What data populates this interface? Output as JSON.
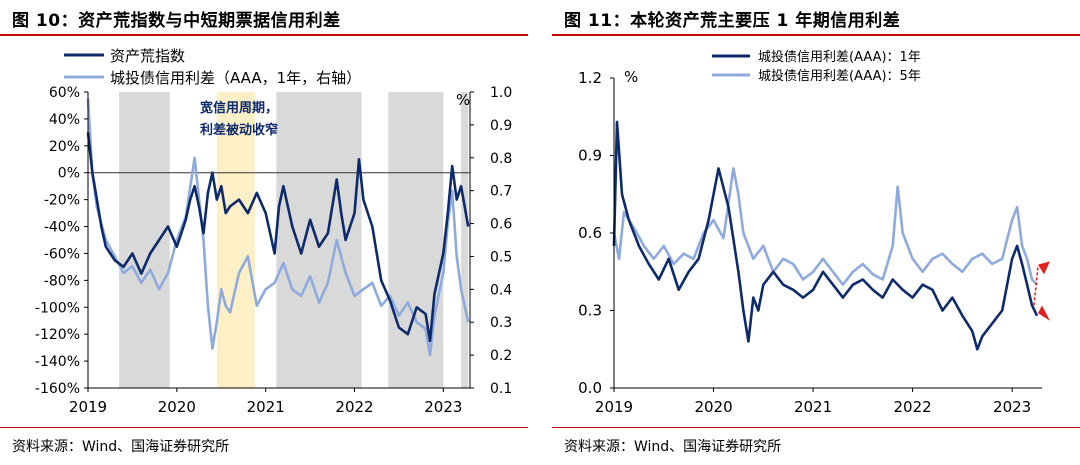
{
  "colors": {
    "dark": "#0d2a6b",
    "light": "#8faadc",
    "shade": "#d9d9d9",
    "highlight": "#fdf0c6",
    "arrow": "#e0221f"
  },
  "left": {
    "title": "图 10：资产荒指数与中短期票据信用利差",
    "source": "资料来源：Wind、国海证券研究所",
    "pct_unit": "%",
    "annotation": [
      "宽信用周期，",
      "利差被动收窄"
    ],
    "legend": [
      "资产荒指数",
      "城投债信用利差（AAA，1年，右轴）"
    ]
  },
  "right": {
    "title": "图 11：本轮资产荒主要压 1 年期信用利差",
    "source": "资料来源：Wind、国海证券研究所",
    "pct_unit": "%",
    "legend": [
      "城投债信用利差(AAA)：1年",
      "城投债信用利差(AAA)：5年"
    ]
  },
  "chart_data": [
    {
      "type": "line",
      "title": "图 10：资产荒指数与中短期票据信用利差",
      "x_ticks": [
        "2019",
        "2020",
        "2021",
        "2022",
        "2023"
      ],
      "y_left_ticks": [
        "60%",
        "40%",
        "20%",
        "0%",
        "-20%",
        "-40%",
        "-60%",
        "-80%",
        "-100%",
        "-120%",
        "-140%",
        "-160%"
      ],
      "y_right_ticks": [
        "1.0",
        "0.9",
        "0.8",
        "0.7",
        "0.6",
        "0.5",
        "0.4",
        "0.3",
        "0.2",
        "0.1"
      ],
      "ylim_left": [
        -160,
        60
      ],
      "ylim_right": [
        0.1,
        1.0
      ],
      "xlim": [
        2019.0,
        2023.3
      ],
      "shaded_periods": [
        [
          2019.35,
          2019.92
        ],
        [
          2021.12,
          2022.08
        ],
        [
          2022.38,
          2023.0
        ],
        [
          2023.2,
          2023.28
        ]
      ],
      "highlight_period": [
        2020.45,
        2020.88
      ],
      "series": [
        {
          "name": "资产荒指数",
          "axis": "left",
          "color": "#0d2a6b",
          "x": [
            2019.0,
            2019.05,
            2019.1,
            2019.15,
            2019.2,
            2019.3,
            2019.4,
            2019.5,
            2019.6,
            2019.7,
            2019.8,
            2019.9,
            2020.0,
            2020.05,
            2020.1,
            2020.15,
            2020.2,
            2020.25,
            2020.3,
            2020.35,
            2020.4,
            2020.45,
            2020.5,
            2020.55,
            2020.6,
            2020.7,
            2020.8,
            2020.9,
            2021.0,
            2021.1,
            2021.15,
            2021.2,
            2021.3,
            2021.4,
            2021.5,
            2021.6,
            2021.7,
            2021.8,
            2021.85,
            2021.9,
            2022.0,
            2022.05,
            2022.1,
            2022.2,
            2022.3,
            2022.4,
            2022.5,
            2022.6,
            2022.7,
            2022.8,
            2022.85,
            2022.9,
            2023.0,
            2023.05,
            2023.1,
            2023.15,
            2023.2,
            2023.28
          ],
          "values": [
            30,
            0,
            -20,
            -40,
            -55,
            -65,
            -70,
            -60,
            -75,
            -60,
            -50,
            -40,
            -55,
            -45,
            -35,
            -20,
            -10,
            -25,
            -45,
            -15,
            0,
            -20,
            -10,
            -30,
            -25,
            -20,
            -30,
            -15,
            -30,
            -60,
            -25,
            -10,
            -40,
            -60,
            -35,
            -55,
            -45,
            -5,
            -30,
            -50,
            -30,
            10,
            -20,
            -40,
            -80,
            -95,
            -115,
            -120,
            -100,
            -105,
            -125,
            -90,
            -60,
            -30,
            5,
            -20,
            -10,
            -40
          ]
        },
        {
          "name": "城投债信用利差（AAA，1年，右轴）",
          "axis": "right",
          "color": "#8faadc",
          "x": [
            2019.0,
            2019.05,
            2019.1,
            2019.15,
            2019.2,
            2019.3,
            2019.4,
            2019.5,
            2019.6,
            2019.7,
            2019.8,
            2019.9,
            2020.0,
            2020.1,
            2020.2,
            2020.3,
            2020.35,
            2020.4,
            2020.45,
            2020.5,
            2020.55,
            2020.6,
            2020.7,
            2020.8,
            2020.9,
            2021.0,
            2021.1,
            2021.2,
            2021.3,
            2021.4,
            2021.5,
            2021.6,
            2021.7,
            2021.8,
            2021.9,
            2022.0,
            2022.1,
            2022.2,
            2022.3,
            2022.4,
            2022.5,
            2022.6,
            2022.7,
            2022.8,
            2022.85,
            2022.9,
            2023.0,
            2023.05,
            2023.1,
            2023.15,
            2023.2,
            2023.28
          ],
          "values": [
            0.98,
            0.75,
            0.65,
            0.6,
            0.55,
            0.5,
            0.45,
            0.47,
            0.42,
            0.46,
            0.4,
            0.45,
            0.55,
            0.62,
            0.8,
            0.55,
            0.35,
            0.22,
            0.3,
            0.4,
            0.35,
            0.33,
            0.45,
            0.5,
            0.35,
            0.4,
            0.42,
            0.48,
            0.4,
            0.38,
            0.44,
            0.36,
            0.42,
            0.55,
            0.45,
            0.38,
            0.4,
            0.42,
            0.35,
            0.38,
            0.32,
            0.36,
            0.3,
            0.28,
            0.2,
            0.32,
            0.45,
            0.6,
            0.7,
            0.5,
            0.4,
            0.3
          ]
        }
      ]
    },
    {
      "type": "line",
      "title": "图 11：本轮资产荒主要压 1 年期信用利差",
      "x_ticks": [
        "2019",
        "2020",
        "2021",
        "2022",
        "2023"
      ],
      "y_ticks": [
        "1.2",
        "0.9",
        "0.6",
        "0.3",
        "0.0"
      ],
      "ylim": [
        0.0,
        1.2
      ],
      "xlim": [
        2019.0,
        2023.3
      ],
      "series": [
        {
          "name": "城投债信用利差(AAA)：1年",
          "color": "#0d2a6b",
          "x": [
            2019.0,
            2019.03,
            2019.08,
            2019.15,
            2019.25,
            2019.35,
            2019.45,
            2019.55,
            2019.65,
            2019.75,
            2019.85,
            2019.95,
            2020.05,
            2020.15,
            2020.25,
            2020.3,
            2020.35,
            2020.4,
            2020.45,
            2020.5,
            2020.6,
            2020.7,
            2020.8,
            2020.9,
            2021.0,
            2021.1,
            2021.2,
            2021.3,
            2021.4,
            2021.5,
            2021.6,
            2021.7,
            2021.8,
            2021.9,
            2022.0,
            2022.1,
            2022.2,
            2022.3,
            2022.4,
            2022.5,
            2022.6,
            2022.65,
            2022.7,
            2022.8,
            2022.9,
            2023.0,
            2023.05,
            2023.1,
            2023.15,
            2023.2,
            2023.25
          ],
          "values": [
            0.55,
            1.03,
            0.75,
            0.65,
            0.55,
            0.48,
            0.42,
            0.5,
            0.38,
            0.45,
            0.5,
            0.65,
            0.85,
            0.7,
            0.45,
            0.3,
            0.18,
            0.35,
            0.3,
            0.4,
            0.45,
            0.4,
            0.38,
            0.35,
            0.38,
            0.45,
            0.4,
            0.35,
            0.4,
            0.42,
            0.38,
            0.35,
            0.42,
            0.38,
            0.35,
            0.4,
            0.38,
            0.3,
            0.35,
            0.28,
            0.22,
            0.15,
            0.2,
            0.25,
            0.3,
            0.5,
            0.55,
            0.48,
            0.4,
            0.32,
            0.28
          ]
        },
        {
          "name": "城投债信用利差(AAA)：5年",
          "color": "#8faadc",
          "x": [
            2019.0,
            2019.05,
            2019.1,
            2019.2,
            2019.3,
            2019.4,
            2019.5,
            2019.6,
            2019.7,
            2019.8,
            2019.9,
            2020.0,
            2020.1,
            2020.2,
            2020.25,
            2020.3,
            2020.4,
            2020.5,
            2020.6,
            2020.7,
            2020.8,
            2020.9,
            2021.0,
            2021.1,
            2021.2,
            2021.3,
            2021.4,
            2021.5,
            2021.6,
            2021.7,
            2021.8,
            2021.85,
            2021.9,
            2022.0,
            2022.1,
            2022.2,
            2022.3,
            2022.4,
            2022.5,
            2022.6,
            2022.7,
            2022.8,
            2022.9,
            2023.0,
            2023.05,
            2023.1,
            2023.15,
            2023.2,
            2023.25
          ],
          "values": [
            0.6,
            0.5,
            0.68,
            0.62,
            0.55,
            0.5,
            0.55,
            0.48,
            0.52,
            0.5,
            0.6,
            0.65,
            0.58,
            0.85,
            0.75,
            0.6,
            0.5,
            0.55,
            0.45,
            0.5,
            0.48,
            0.42,
            0.45,
            0.5,
            0.45,
            0.4,
            0.45,
            0.48,
            0.44,
            0.42,
            0.55,
            0.78,
            0.6,
            0.5,
            0.45,
            0.5,
            0.52,
            0.48,
            0.45,
            0.5,
            0.52,
            0.48,
            0.5,
            0.65,
            0.7,
            0.55,
            0.5,
            0.42,
            0.4
          ]
        }
      ]
    }
  ]
}
